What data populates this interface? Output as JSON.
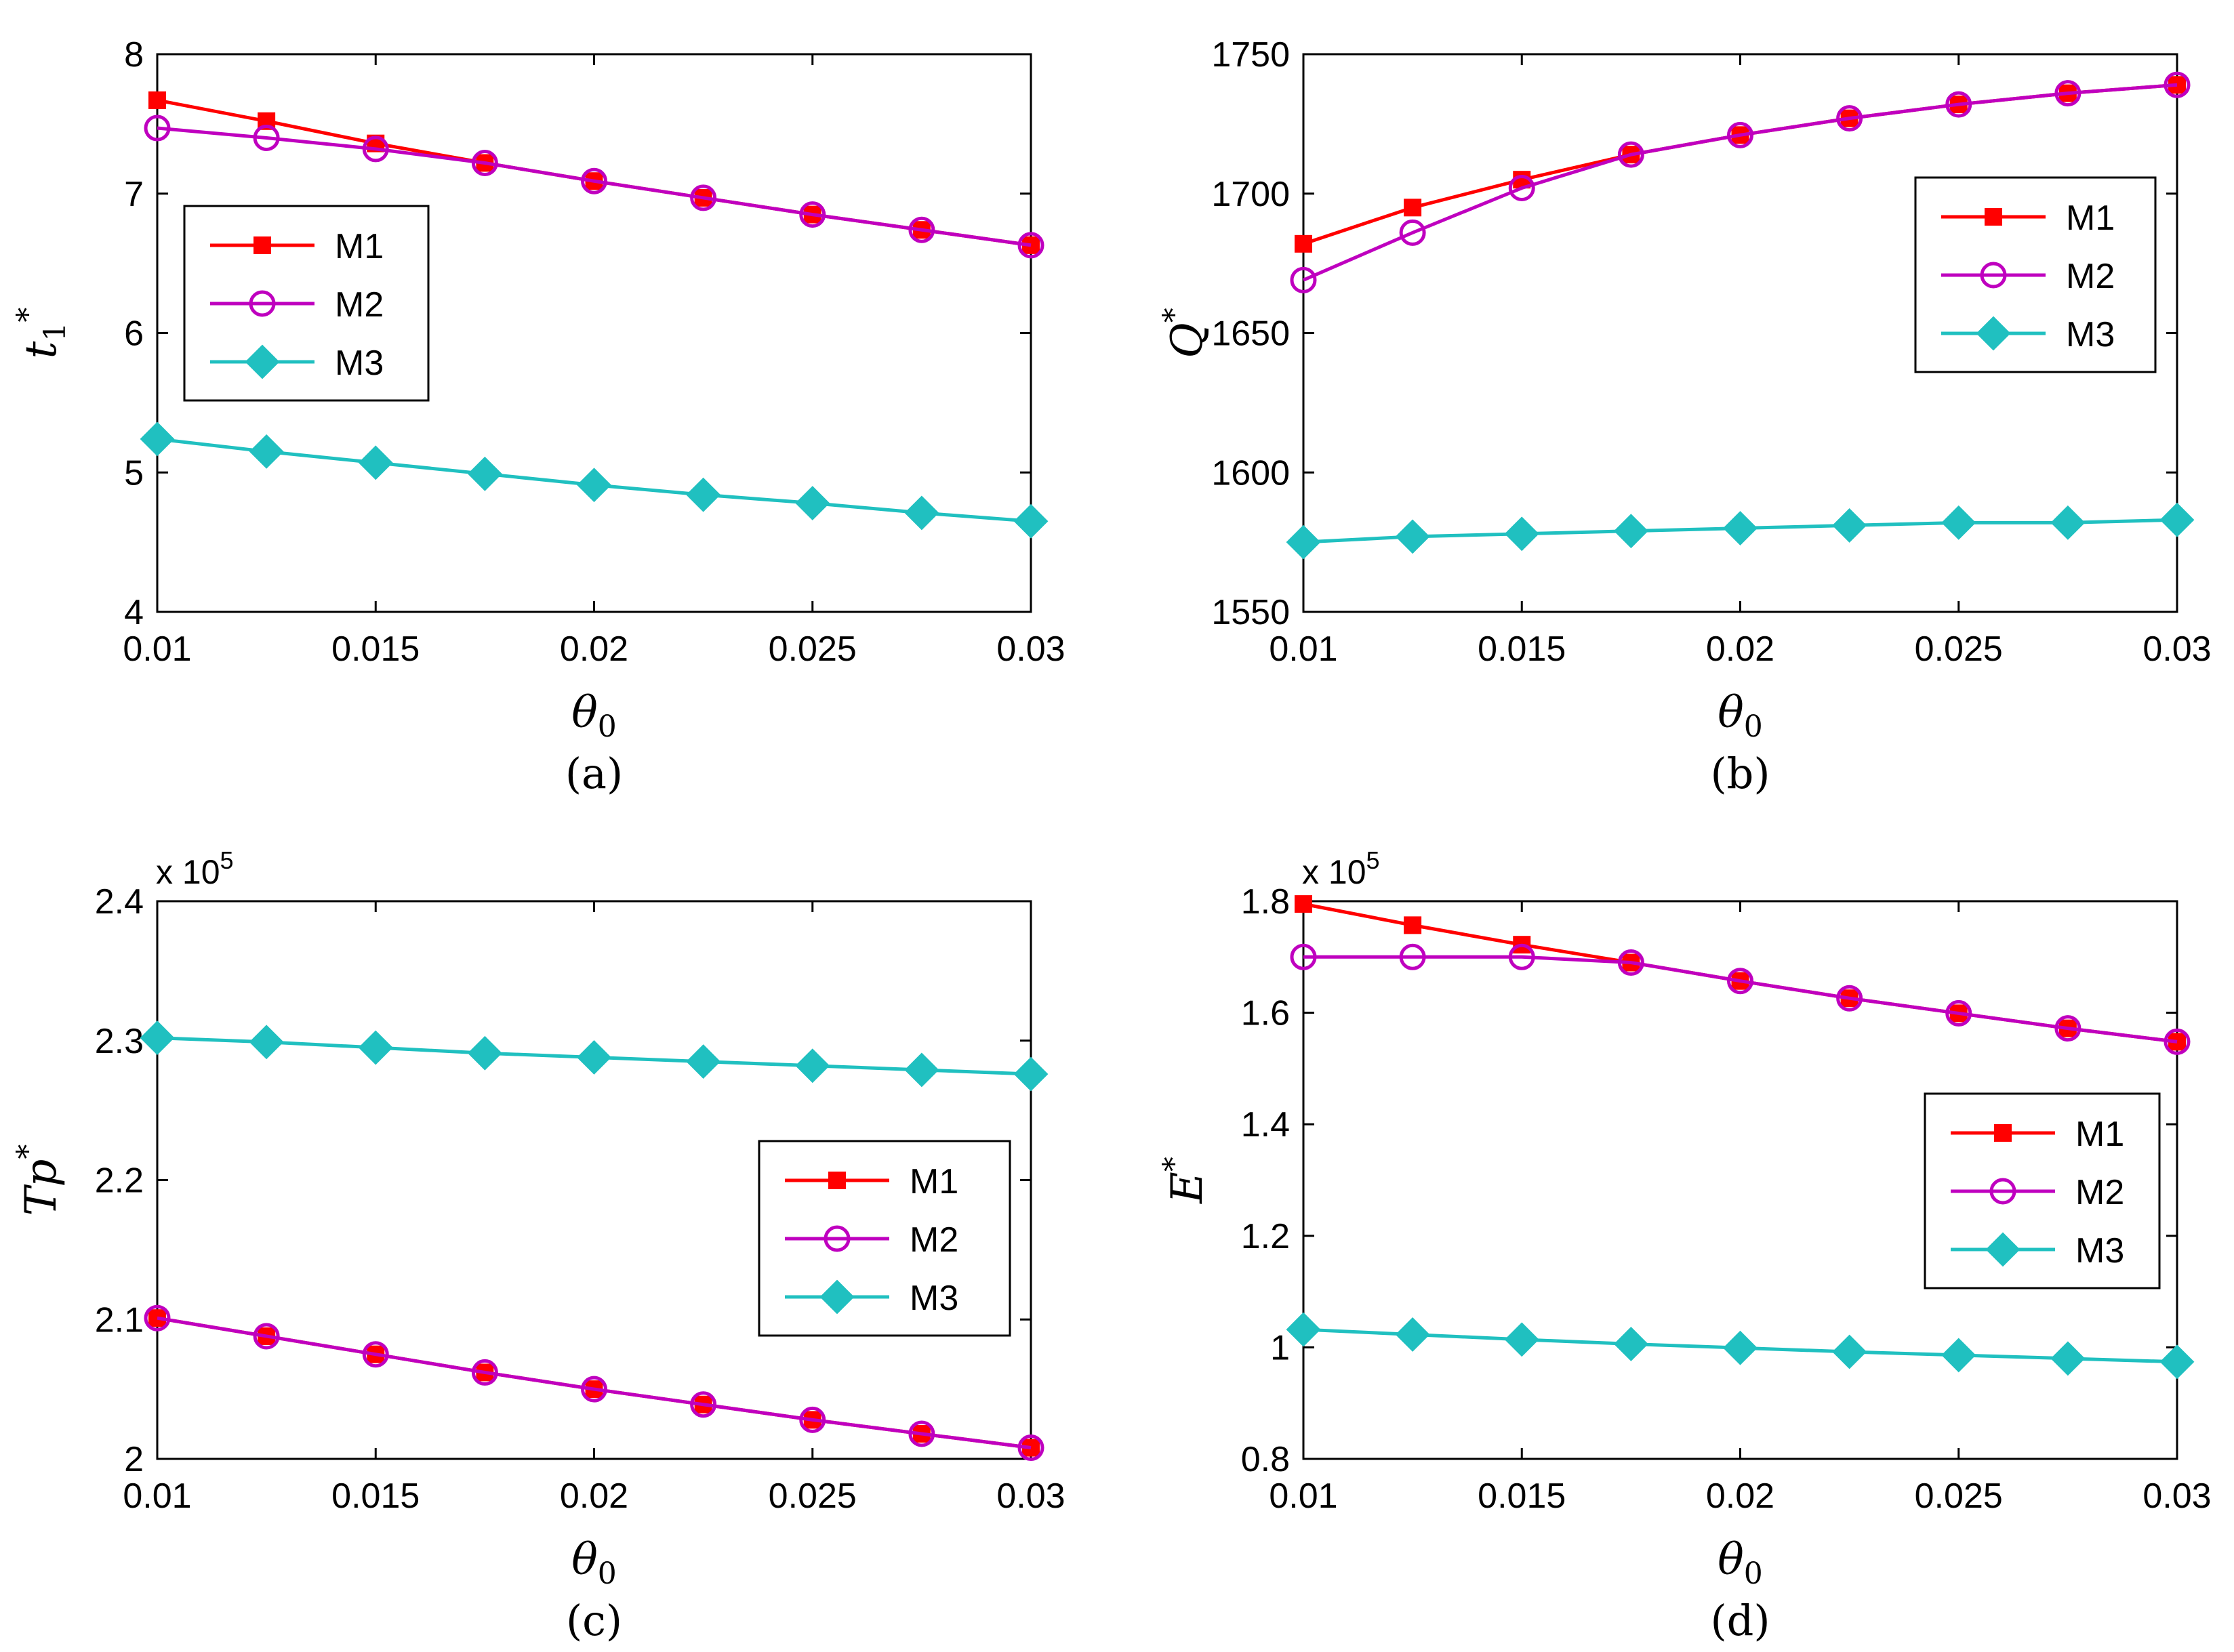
{
  "chart_data": [
    {
      "id": "a",
      "type": "line",
      "caption": "(a)",
      "xlabel": "θ0",
      "ylabel": "t1*",
      "ylabel_main": "t",
      "ylabel_sub": "1",
      "ylabel_sup": "*",
      "xlabel_main": "θ",
      "xlabel_sub": "0",
      "xlim": [
        0.01,
        0.03
      ],
      "ylim": [
        4,
        8
      ],
      "x_ticks": [
        "0.01",
        "0.015",
        "0.02",
        "0.025",
        "0.03"
      ],
      "y_ticks": [
        "4",
        "5",
        "6",
        "7",
        "8"
      ],
      "y_tick_values": [
        4,
        5,
        6,
        7,
        8
      ],
      "exponent": null,
      "legend_position": "middle-left",
      "x": [
        0.01,
        0.0125,
        0.015,
        0.0175,
        0.02,
        0.0225,
        0.025,
        0.0275,
        0.03
      ],
      "series": [
        {
          "name": "M1",
          "values": [
            7.67,
            7.52,
            7.36,
            7.22,
            7.09,
            6.97,
            6.85,
            6.74,
            6.63
          ]
        },
        {
          "name": "M2",
          "values": [
            7.47,
            7.4,
            7.32,
            7.22,
            7.09,
            6.97,
            6.85,
            6.74,
            6.63
          ]
        },
        {
          "name": "M3",
          "values": [
            5.24,
            5.15,
            5.07,
            4.99,
            4.91,
            4.84,
            4.78,
            4.71,
            4.65
          ]
        }
      ]
    },
    {
      "id": "b",
      "type": "line",
      "caption": "(b)",
      "xlabel": "θ0",
      "ylabel": "Q*",
      "ylabel_main": "Q",
      "ylabel_sub": "",
      "ylabel_sup": "*",
      "xlabel_main": "θ",
      "xlabel_sub": "0",
      "xlim": [
        0.01,
        0.03
      ],
      "ylim": [
        1550,
        1750
      ],
      "x_ticks": [
        "0.01",
        "0.015",
        "0.02",
        "0.025",
        "0.03"
      ],
      "y_ticks": [
        "1550",
        "1600",
        "1650",
        "1700",
        "1750"
      ],
      "y_tick_values": [
        1550,
        1600,
        1650,
        1700,
        1750
      ],
      "exponent": null,
      "legend_position": "top-right",
      "x": [
        0.01,
        0.0125,
        0.015,
        0.0175,
        0.02,
        0.0225,
        0.025,
        0.0275,
        0.03
      ],
      "series": [
        {
          "name": "M1",
          "values": [
            1682,
            1695,
            1705,
            1714,
            1721,
            1727,
            1732,
            1736,
            1739
          ]
        },
        {
          "name": "M2",
          "values": [
            1669,
            1686,
            1702,
            1714,
            1721,
            1727,
            1732,
            1736,
            1739
          ]
        },
        {
          "name": "M3",
          "values": [
            1575,
            1577,
            1578,
            1579,
            1580,
            1581,
            1582,
            1582,
            1583
          ]
        }
      ]
    },
    {
      "id": "c",
      "type": "line",
      "caption": "(c)",
      "xlabel": "θ0",
      "ylabel": "Tp*",
      "ylabel_main": "Tp",
      "ylabel_sub": "",
      "ylabel_sup": "*",
      "xlabel_main": "θ",
      "xlabel_sub": "0",
      "xlim": [
        0.01,
        0.03
      ],
      "ylim": [
        2.0,
        2.4
      ],
      "x_ticks": [
        "0.01",
        "0.015",
        "0.02",
        "0.025",
        "0.03"
      ],
      "y_ticks": [
        "2",
        "2.1",
        "2.2",
        "2.3",
        "2.4"
      ],
      "y_tick_values": [
        2.0,
        2.1,
        2.2,
        2.3,
        2.4
      ],
      "exponent": {
        "base": "x 10",
        "power": "5"
      },
      "legend_position": "center-right",
      "x": [
        0.01,
        0.0125,
        0.015,
        0.0175,
        0.02,
        0.0225,
        0.025,
        0.0275,
        0.03
      ],
      "series": [
        {
          "name": "M1",
          "values": [
            2.101,
            2.088,
            2.075,
            2.062,
            2.05,
            2.039,
            2.028,
            2.018,
            2.008
          ]
        },
        {
          "name": "M2",
          "values": [
            2.101,
            2.088,
            2.075,
            2.062,
            2.05,
            2.039,
            2.028,
            2.018,
            2.008
          ]
        },
        {
          "name": "M3",
          "values": [
            2.302,
            2.299,
            2.295,
            2.291,
            2.288,
            2.285,
            2.282,
            2.279,
            2.276
          ]
        }
      ]
    },
    {
      "id": "d",
      "type": "line",
      "caption": "(d)",
      "xlabel": "θ0",
      "ylabel": "E*",
      "ylabel_main": "E",
      "ylabel_sub": "",
      "ylabel_sup": "*",
      "xlabel_main": "θ",
      "xlabel_sub": "0",
      "xlim": [
        0.01,
        0.03
      ],
      "ylim": [
        0.8,
        1.8
      ],
      "x_ticks": [
        "0.01",
        "0.015",
        "0.02",
        "0.025",
        "0.03"
      ],
      "y_ticks": [
        "0.8",
        "1",
        "1.2",
        "1.4",
        "1.6",
        "1.8"
      ],
      "y_tick_values": [
        0.8,
        1.0,
        1.2,
        1.4,
        1.6,
        1.8
      ],
      "exponent": {
        "base": "x 10",
        "power": "5"
      },
      "legend_position": "center-right",
      "x": [
        0.01,
        0.0125,
        0.015,
        0.0175,
        0.02,
        0.0225,
        0.025,
        0.0275,
        0.03
      ],
      "series": [
        {
          "name": "M1",
          "values": [
            1.795,
            1.757,
            1.722,
            1.69,
            1.657,
            1.626,
            1.599,
            1.572,
            1.548
          ]
        },
        {
          "name": "M2",
          "values": [
            1.7,
            1.7,
            1.7,
            1.69,
            1.657,
            1.626,
            1.599,
            1.572,
            1.548
          ]
        },
        {
          "name": "M3",
          "values": [
            1.032,
            1.023,
            1.014,
            1.006,
            0.999,
            0.992,
            0.986,
            0.98,
            0.974
          ]
        }
      ]
    }
  ],
  "series_styles": {
    "M1": {
      "color": "#ff0000",
      "marker": "square"
    },
    "M2": {
      "color": "#bf00bf",
      "marker": "circle"
    },
    "M3": {
      "color": "#20c0c0",
      "marker": "diamond"
    }
  }
}
